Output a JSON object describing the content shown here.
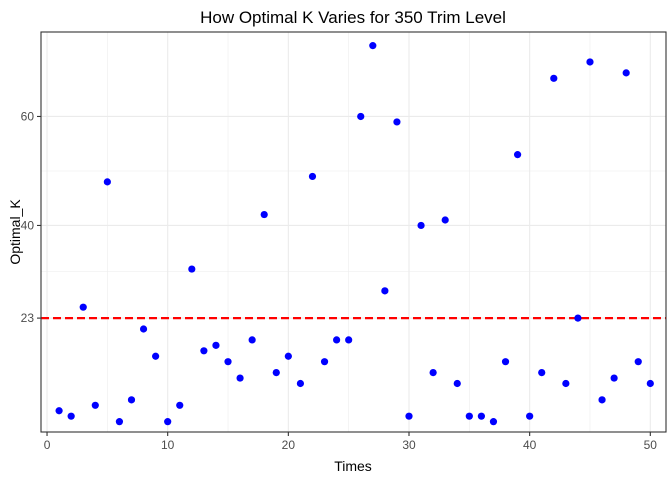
{
  "chart_data": {
    "type": "scatter",
    "title": "How Optimal K Varies for 350 Trim Level",
    "xlabel": "Times",
    "ylabel": "Optimal_K",
    "xlim": [
      -0.5,
      51.3
    ],
    "ylim": [
      2.1,
      75.5
    ],
    "x_ticks": [
      0,
      10,
      20,
      30,
      40,
      50
    ],
    "y_ticks": [
      23,
      40,
      60
    ],
    "x_tick_labels": [
      "0",
      "10",
      "20",
      "30",
      "40",
      "50"
    ],
    "y_tick_labels": [
      "23",
      "40",
      "60"
    ],
    "grid": true,
    "point_color": "#0000ff",
    "reference_line": {
      "y": 23,
      "color": "#ff0000",
      "style": "dashed"
    },
    "x": [
      1,
      2,
      3,
      4,
      5,
      6,
      7,
      8,
      9,
      10,
      11,
      12,
      13,
      14,
      15,
      16,
      17,
      18,
      19,
      20,
      21,
      22,
      23,
      24,
      25,
      26,
      27,
      28,
      29,
      30,
      31,
      32,
      33,
      34,
      35,
      36,
      37,
      38,
      39,
      40,
      41,
      42,
      43,
      44,
      45,
      46,
      47,
      48,
      49,
      50
    ],
    "y": [
      6,
      5,
      25,
      7,
      48,
      4,
      8,
      21,
      16,
      4,
      7,
      32,
      17,
      18,
      15,
      12,
      19,
      42,
      13,
      16,
      11,
      49,
      15,
      19,
      19,
      60,
      73,
      28,
      59,
      5,
      40,
      13,
      41,
      11,
      5,
      5,
      4,
      15,
      53,
      5,
      13,
      67,
      11,
      23,
      70,
      8,
      12,
      68,
      15,
      11
    ]
  }
}
